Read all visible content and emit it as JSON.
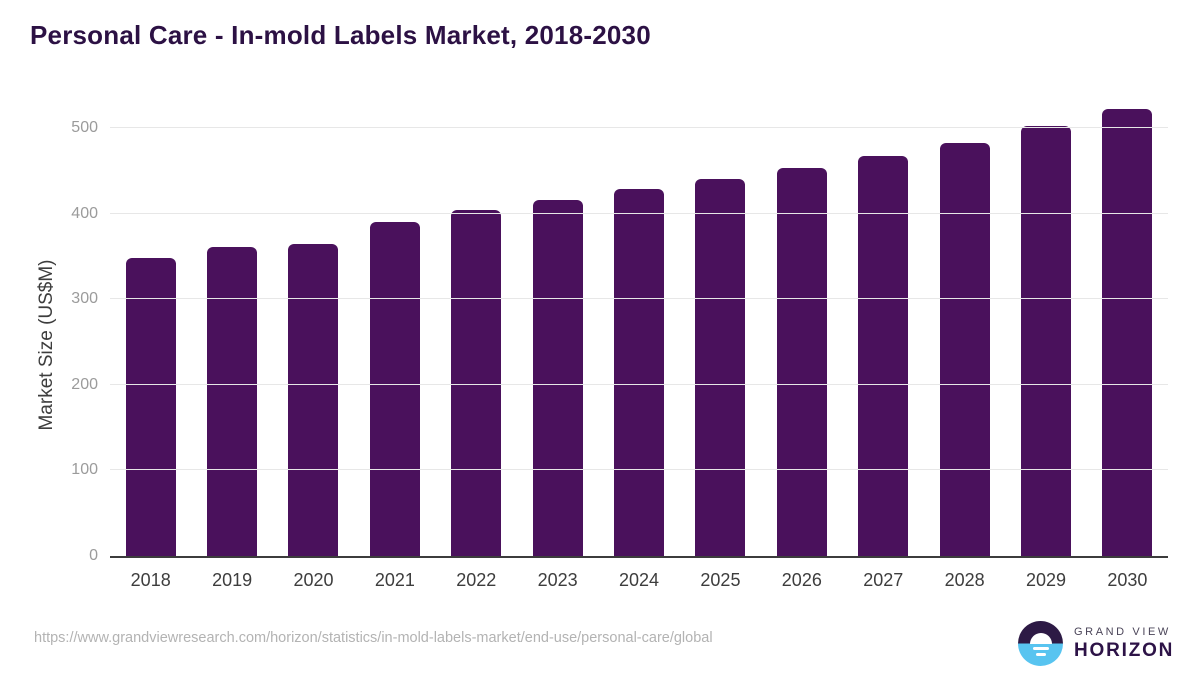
{
  "title": "Personal Care - In-mold Labels Market, 2018-2030",
  "chart_data": {
    "type": "bar",
    "categories": [
      "2018",
      "2019",
      "2020",
      "2021",
      "2022",
      "2023",
      "2024",
      "2025",
      "2026",
      "2027",
      "2028",
      "2029",
      "2030"
    ],
    "values": [
      348,
      361,
      365,
      390,
      404,
      416,
      429,
      441,
      453,
      467,
      483,
      502,
      522
    ],
    "title": "Personal Care - In-mold Labels Market, 2018-2030",
    "xlabel": "",
    "ylabel": "Market Size (US$M)",
    "ylim": [
      0,
      500
    ],
    "yticks": [
      0,
      100,
      200,
      300,
      400,
      500
    ],
    "grid": true,
    "legend_position": "none",
    "bar_color": "#4a115c"
  },
  "colors": {
    "title_text": "#2c1144",
    "bar": "#4a115c",
    "axis_line": "#3c3c3c",
    "gridline": "#e7e7e7",
    "y_tick_text": "#9b9b9b",
    "x_tick_text": "#3d3d3d",
    "footer_text": "#b3b3b3",
    "logo_dark": "#2d1a45",
    "logo_blue": "#58c4f0"
  },
  "footer": {
    "source_url": "https://www.grandviewresearch.com/horizon/statistics/in-mold-labels-market/end-use/personal-care/global",
    "logo": {
      "line1": "GRAND VIEW",
      "line2": "HORIZON"
    }
  }
}
